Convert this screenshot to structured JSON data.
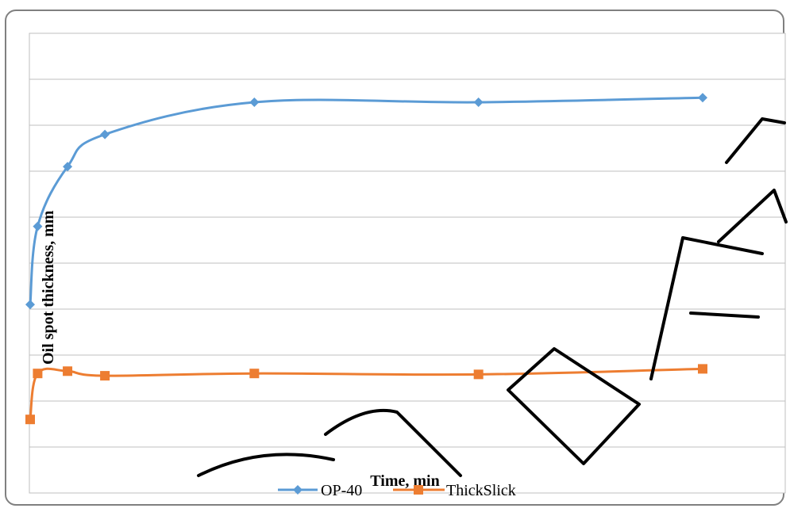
{
  "chart_data": {
    "type": "line",
    "title": "",
    "xlabel": "Time, min",
    "ylabel": "Oil spot thickness, mm",
    "x": [
      0,
      1,
      5,
      10,
      30,
      60,
      90
    ],
    "xlim": [
      0,
      90
    ],
    "ylim": [
      0,
      10
    ],
    "grid": true,
    "legend_position": "bottom",
    "series": [
      {
        "name": "OP-40",
        "color": "#5B9BD5",
        "marker": "diamond",
        "values": [
          4.1,
          5.8,
          7.1,
          7.8,
          8.5,
          8.5,
          8.6
        ]
      },
      {
        "name": "ThickSlick",
        "color": "#ED7D31",
        "marker": "square",
        "values": [
          1.6,
          2.6,
          2.65,
          2.55,
          2.6,
          2.58,
          2.7
        ]
      }
    ]
  },
  "watermark": {
    "text": "й Кар",
    "color": "#000000"
  }
}
